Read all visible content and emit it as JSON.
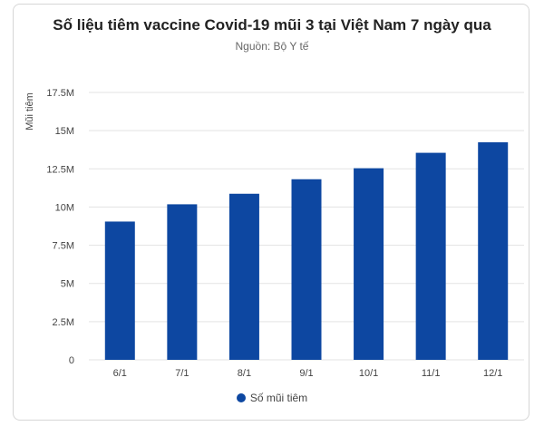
{
  "chart_data": {
    "type": "bar",
    "title": "Số liệu tiêm vaccine Covid-19 mũi 3 tại Việt Nam 7 ngày qua",
    "subtitle": "Nguồn: Bộ Y tế",
    "xlabel": "",
    "ylabel": "Mũi tiêm",
    "categories": [
      "6/1",
      "7/1",
      "8/1",
      "9/1",
      "10/1",
      "11/1",
      "12/1"
    ],
    "series": [
      {
        "name": "Số mũi tiêm",
        "color": "#0d47a1",
        "values": [
          9050000,
          10180000,
          10870000,
          11820000,
          12540000,
          13550000,
          14240000
        ]
      }
    ],
    "ylim": [
      0,
      17500000
    ],
    "yticks": [
      0,
      2500000,
      5000000,
      7500000,
      10000000,
      12500000,
      15000000,
      17500000
    ],
    "ytick_labels": [
      "0",
      "2.5M",
      "5M",
      "7.5M",
      "10M",
      "12.5M",
      "15M",
      "17.5M"
    ],
    "grid": true,
    "legend": "bottom"
  }
}
